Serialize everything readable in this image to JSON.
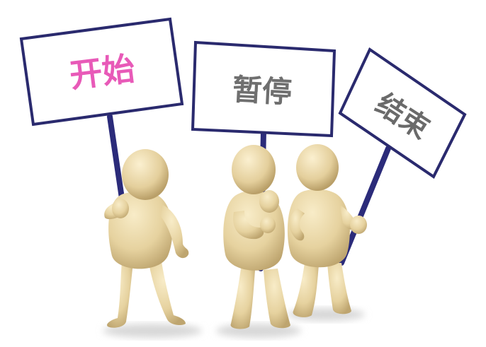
{
  "signs": [
    {
      "label": "开始",
      "color": "#e85ab8"
    },
    {
      "label": "暂停",
      "color": "#6f6f6f"
    },
    {
      "label": "结束",
      "color": "#6a6a6a"
    }
  ],
  "colors": {
    "figure": "#e8d6a6",
    "figure_shade": "#cdb783",
    "sign_border": "#2a2a6e",
    "pole": "#2b2b7a",
    "background": "#ffffff"
  }
}
